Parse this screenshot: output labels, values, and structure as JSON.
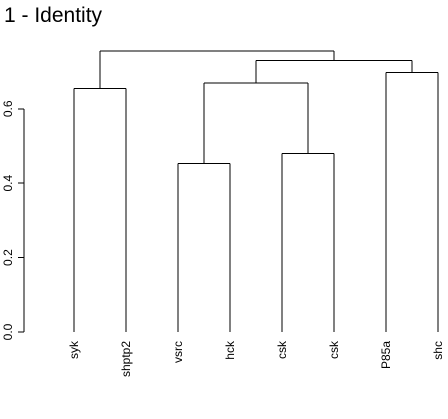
{
  "chart_data": {
    "type": "dendrogram",
    "title": "1 - Identity",
    "xlabel": "",
    "ylabel": "",
    "ylim": [
      0,
      0.76
    ],
    "y_ticks": [
      {
        "value": 0.0,
        "label": "0.0"
      },
      {
        "value": 0.2,
        "label": "0.2"
      },
      {
        "value": 0.4,
        "label": "0.4"
      },
      {
        "value": 0.6,
        "label": "0.6"
      }
    ],
    "leaves": [
      "syk",
      "shptp2",
      "vsrc",
      "hck",
      "csk",
      "csk",
      "P85a",
      "shc"
    ],
    "merges": [
      {
        "left": "L0",
        "right": "L1",
        "height": 0.655
      },
      {
        "left": "L2",
        "right": "L3",
        "height": 0.453
      },
      {
        "left": "L4",
        "right": "L5",
        "height": 0.48
      },
      {
        "left": "L6",
        "right": "L7",
        "height": 0.697
      },
      {
        "left": "M1",
        "right": "M2",
        "height": 0.67
      },
      {
        "left": "M4",
        "right": "M3",
        "height": 0.73
      },
      {
        "left": "M0",
        "right": "M5",
        "height": 0.755
      }
    ],
    "colors": {
      "line": "#000000",
      "text": "#000000"
    }
  }
}
